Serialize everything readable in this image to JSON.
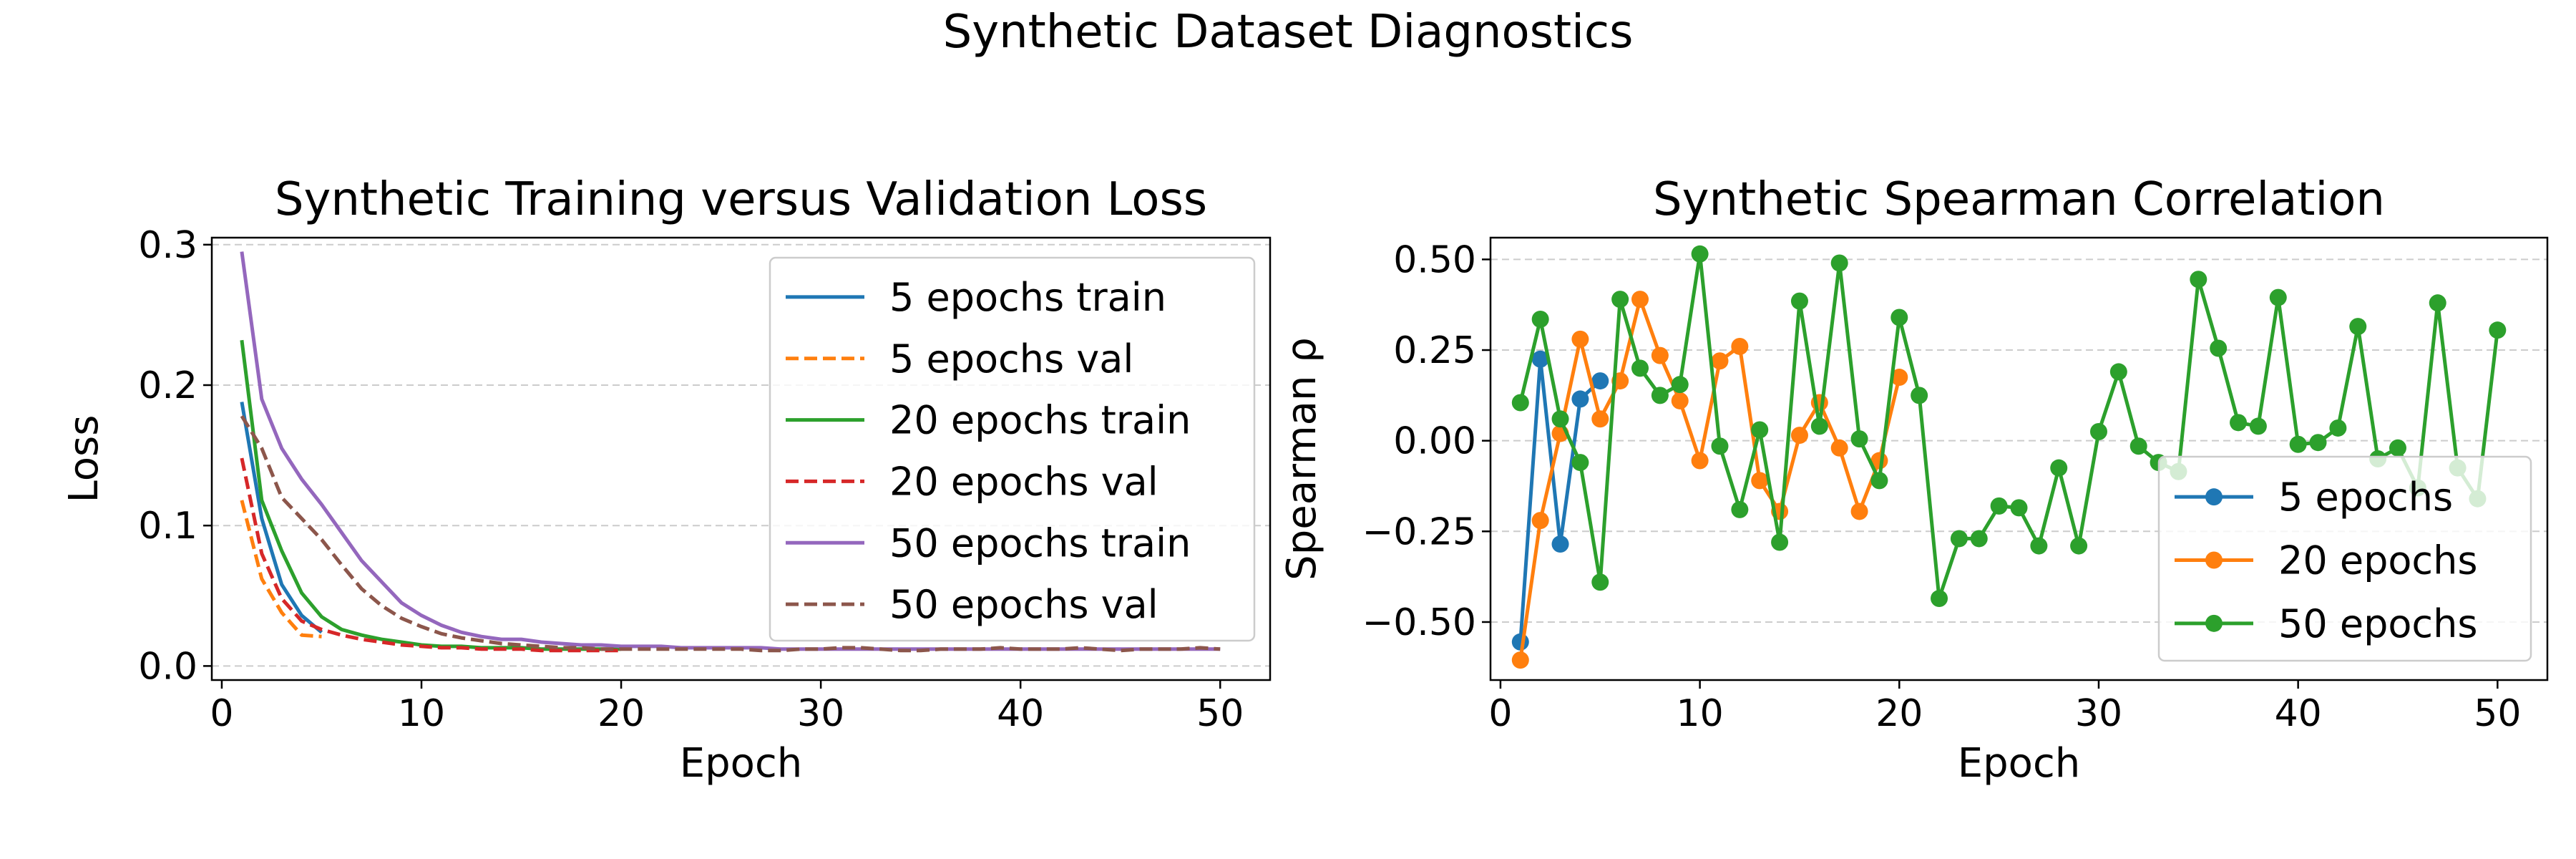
{
  "figure": {
    "suptitle": "Synthetic Dataset Diagnostics"
  },
  "colors": {
    "blue": "#1f77b4",
    "orange": "#ff7f0e",
    "green": "#2ca02c",
    "red": "#d62728",
    "purple": "#9467bd",
    "brown": "#8c564b",
    "grid": "#cccccc"
  },
  "chart_data": [
    {
      "type": "line",
      "title": "Synthetic Training versus Validation Loss",
      "xlabel": "Epoch",
      "ylabel": "Loss",
      "xlim": [
        -0.5,
        52.5
      ],
      "ylim": [
        -0.01,
        0.305
      ],
      "xticks": [
        0,
        10,
        20,
        30,
        40,
        50
      ],
      "xtick_labels": [
        "0",
        "10",
        "20",
        "30",
        "40",
        "50"
      ],
      "yticks": [
        0.0,
        0.1,
        0.2,
        0.3
      ],
      "ytick_labels": [
        "0.0",
        "0.1",
        "0.2",
        "0.3"
      ],
      "grid": "y dashed",
      "legend_position": "upper right",
      "series": [
        {
          "name": "5 epochs train",
          "color": "#1f77b4",
          "dash": "solid",
          "x": [
            1,
            2,
            3,
            4,
            5
          ],
          "y": [
            0.188,
            0.105,
            0.058,
            0.036,
            0.024
          ]
        },
        {
          "name": "5 epochs val",
          "color": "#ff7f0e",
          "dash": "dashed",
          "x": [
            1,
            2,
            3,
            4,
            5
          ],
          "y": [
            0.118,
            0.062,
            0.038,
            0.022,
            0.021
          ]
        },
        {
          "name": "20 epochs train",
          "color": "#2ca02c",
          "dash": "solid",
          "x": [
            1,
            2,
            3,
            4,
            5,
            6,
            7,
            8,
            9,
            10,
            11,
            12,
            13,
            14,
            15,
            16,
            17,
            18,
            19,
            20
          ],
          "y": [
            0.232,
            0.118,
            0.082,
            0.052,
            0.035,
            0.026,
            0.022,
            0.019,
            0.017,
            0.015,
            0.014,
            0.014,
            0.013,
            0.013,
            0.013,
            0.012,
            0.012,
            0.012,
            0.012,
            0.012
          ]
        },
        {
          "name": "20 epochs val",
          "color": "#d62728",
          "dash": "dashed",
          "x": [
            1,
            2,
            3,
            4,
            5,
            6,
            7,
            8,
            9,
            10,
            11,
            12,
            13,
            14,
            15,
            16,
            17,
            18,
            19,
            20
          ],
          "y": [
            0.148,
            0.08,
            0.048,
            0.032,
            0.026,
            0.022,
            0.019,
            0.017,
            0.015,
            0.014,
            0.013,
            0.013,
            0.012,
            0.012,
            0.012,
            0.011,
            0.011,
            0.011,
            0.011,
            0.011
          ]
        },
        {
          "name": "50 epochs train",
          "color": "#9467bd",
          "dash": "solid",
          "x": [
            1,
            2,
            3,
            4,
            5,
            6,
            7,
            8,
            9,
            10,
            11,
            12,
            13,
            14,
            15,
            16,
            17,
            18,
            19,
            20,
            21,
            22,
            23,
            24,
            25,
            26,
            27,
            28,
            29,
            30,
            31,
            32,
            33,
            34,
            35,
            36,
            37,
            38,
            39,
            40,
            41,
            42,
            43,
            44,
            45,
            46,
            47,
            48,
            49,
            50
          ],
          "y": [
            0.295,
            0.19,
            0.155,
            0.133,
            0.115,
            0.095,
            0.075,
            0.06,
            0.045,
            0.036,
            0.029,
            0.024,
            0.021,
            0.019,
            0.019,
            0.017,
            0.016,
            0.015,
            0.015,
            0.014,
            0.014,
            0.014,
            0.013,
            0.013,
            0.013,
            0.013,
            0.013,
            0.012,
            0.012,
            0.012,
            0.012,
            0.012,
            0.012,
            0.012,
            0.012,
            0.012,
            0.012,
            0.012,
            0.012,
            0.012,
            0.012,
            0.012,
            0.012,
            0.012,
            0.012,
            0.012,
            0.012,
            0.012,
            0.012,
            0.012
          ]
        },
        {
          "name": "50 epochs val",
          "color": "#8c564b",
          "dash": "dashed",
          "x": [
            1,
            2,
            3,
            4,
            5,
            6,
            7,
            8,
            9,
            10,
            11,
            12,
            13,
            14,
            15,
            16,
            17,
            18,
            19,
            20,
            21,
            22,
            23,
            24,
            25,
            26,
            27,
            28,
            29,
            30,
            31,
            32,
            33,
            34,
            35,
            36,
            37,
            38,
            39,
            40,
            41,
            42,
            43,
            44,
            45,
            46,
            47,
            48,
            49,
            50
          ],
          "y": [
            0.178,
            0.155,
            0.12,
            0.105,
            0.09,
            0.072,
            0.055,
            0.043,
            0.034,
            0.028,
            0.023,
            0.02,
            0.018,
            0.016,
            0.015,
            0.014,
            0.013,
            0.013,
            0.012,
            0.012,
            0.012,
            0.012,
            0.012,
            0.012,
            0.012,
            0.012,
            0.011,
            0.011,
            0.012,
            0.012,
            0.013,
            0.013,
            0.012,
            0.011,
            0.011,
            0.012,
            0.012,
            0.012,
            0.013,
            0.012,
            0.012,
            0.012,
            0.013,
            0.012,
            0.011,
            0.012,
            0.012,
            0.012,
            0.013,
            0.012
          ]
        }
      ]
    },
    {
      "type": "line",
      "title": "Synthetic Spearman Correlation",
      "xlabel": "Epoch",
      "ylabel": "Spearman ρ",
      "xlim": [
        -0.5,
        52.5
      ],
      "ylim": [
        -0.66,
        0.56
      ],
      "xticks": [
        0,
        10,
        20,
        30,
        40,
        50
      ],
      "xtick_labels": [
        "0",
        "10",
        "20",
        "30",
        "40",
        "50"
      ],
      "yticks": [
        -0.5,
        -0.25,
        0.0,
        0.25,
        0.5
      ],
      "ytick_labels": [
        "−0.50",
        "−0.25",
        "0.00",
        "0.25",
        "0.50"
      ],
      "grid": "y dashed",
      "legend_position": "lower right",
      "markers": true,
      "series": [
        {
          "name": "5 epochs",
          "color": "#1f77b4",
          "x": [
            1,
            2,
            3,
            4,
            5
          ],
          "y": [
            -0.555,
            0.225,
            -0.285,
            0.115,
            0.165
          ]
        },
        {
          "name": "20 epochs",
          "color": "#ff7f0e",
          "x": [
            1,
            2,
            3,
            4,
            5,
            6,
            7,
            8,
            9,
            10,
            11,
            12,
            13,
            14,
            15,
            16,
            17,
            18,
            19,
            20
          ],
          "y": [
            -0.605,
            -0.22,
            0.02,
            0.28,
            0.06,
            0.165,
            0.39,
            0.235,
            0.11,
            -0.055,
            0.22,
            0.26,
            -0.11,
            -0.195,
            0.015,
            0.105,
            -0.02,
            -0.195,
            -0.055,
            0.175
          ]
        },
        {
          "name": "50 epochs",
          "color": "#2ca02c",
          "x": [
            1,
            2,
            3,
            4,
            5,
            6,
            7,
            8,
            9,
            10,
            11,
            12,
            13,
            14,
            15,
            16,
            17,
            18,
            19,
            20,
            21,
            22,
            23,
            24,
            25,
            26,
            27,
            28,
            29,
            30,
            31,
            32,
            33,
            34,
            35,
            36,
            37,
            38,
            39,
            40,
            41,
            42,
            43,
            44,
            45,
            46,
            47,
            48,
            49,
            50
          ],
          "y": [
            0.105,
            0.335,
            0.06,
            -0.06,
            -0.39,
            0.39,
            0.2,
            0.125,
            0.155,
            0.515,
            -0.015,
            -0.19,
            0.03,
            -0.28,
            0.385,
            0.04,
            0.49,
            0.005,
            -0.11,
            0.34,
            0.125,
            -0.435,
            -0.27,
            -0.27,
            -0.18,
            -0.185,
            -0.29,
            -0.075,
            -0.29,
            0.025,
            0.19,
            -0.015,
            -0.06,
            -0.085,
            0.445,
            0.255,
            0.05,
            0.04,
            0.395,
            -0.01,
            -0.005,
            0.035,
            0.315,
            -0.05,
            -0.02,
            -0.13,
            0.38,
            -0.075,
            -0.16,
            0.305
          ]
        }
      ]
    }
  ]
}
